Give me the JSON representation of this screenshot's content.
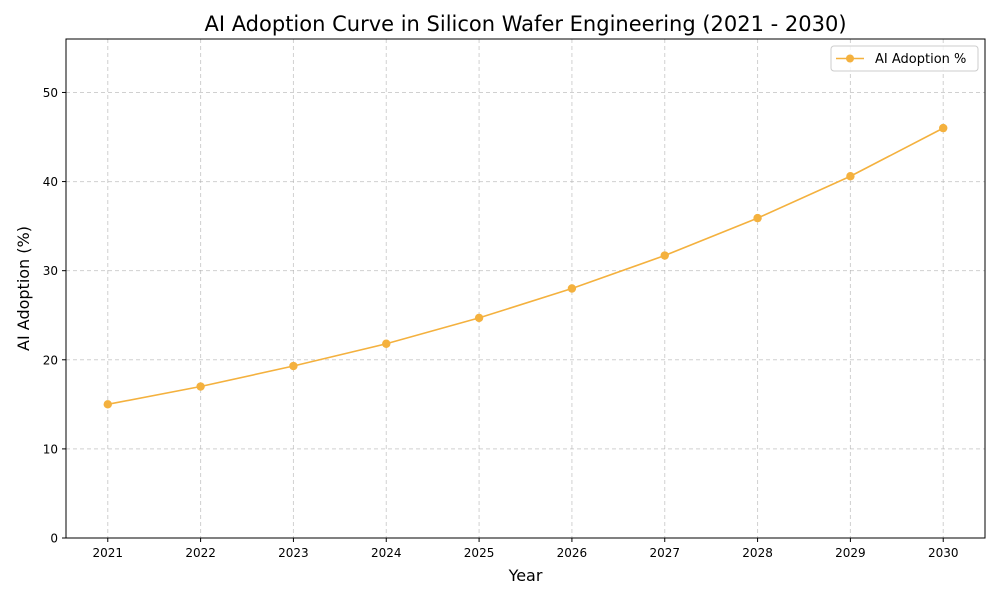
{
  "chart_data": {
    "type": "line",
    "title": "AI Adoption Curve in Silicon Wafer Engineering (2021 - 2030)",
    "xlabel": "Year",
    "ylabel": "AI Adoption (%)",
    "x": [
      2021,
      2022,
      2023,
      2024,
      2025,
      2026,
      2027,
      2028,
      2029,
      2030
    ],
    "series": [
      {
        "name": "AI Adoption %",
        "values": [
          15.0,
          17.0,
          19.3,
          21.8,
          24.7,
          28.0,
          31.7,
          35.9,
          40.6,
          46.0
        ],
        "color": "#f4b13e",
        "marker": "circle"
      }
    ],
    "xticks": [
      "2021",
      "2022",
      "2023",
      "2024",
      "2025",
      "2026",
      "2027",
      "2028",
      "2029",
      "2030"
    ],
    "yticks": [
      "0",
      "10",
      "20",
      "30",
      "40",
      "50"
    ],
    "xlim": [
      2020.55,
      2030.45
    ],
    "ylim": [
      0,
      56
    ],
    "grid": true,
    "grid_style": "dashed",
    "legend": "top-right"
  }
}
